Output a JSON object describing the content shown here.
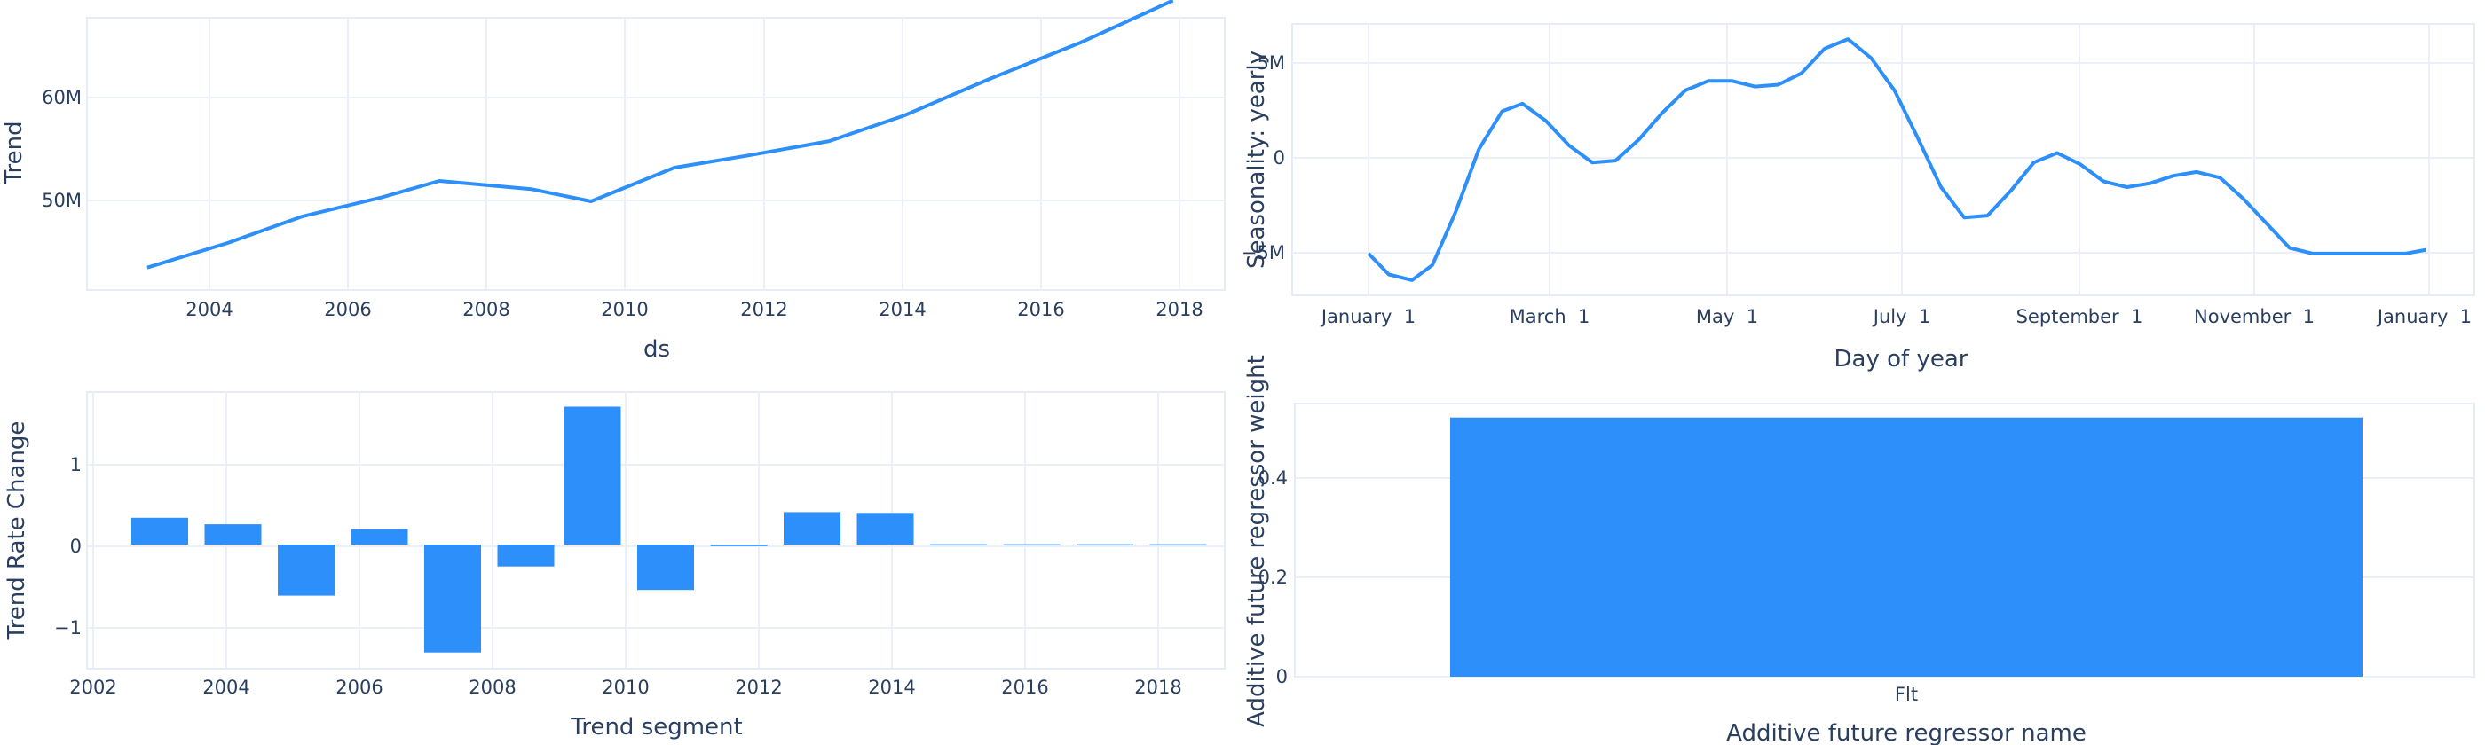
{
  "colors": {
    "trace": "#2d8ffa",
    "grid": "#ebf0f8",
    "text": "#2a3f5f"
  },
  "chart_data": [
    {
      "type": "line",
      "xlabel": "ds",
      "ylabel": "Trend",
      "x_tick_labels": [
        "2004",
        "2006",
        "2008",
        "2010",
        "2012",
        "2014",
        "2016",
        "2018"
      ],
      "y_tick_labels": [
        "50M",
        "60M"
      ],
      "xlim": [
        "2002-02-15",
        "2018-09-01"
      ],
      "ylim": [
        42.8,
        69.5
      ],
      "x": [
        "2003-01-01",
        "2004-03-01",
        "2005-04-01",
        "2006-06-01",
        "2007-04-01",
        "2008-08-01",
        "2009-06-15",
        "2010-09-01",
        "2011-10-01",
        "2012-12-01",
        "2014-01-01",
        "2015-04-01",
        "2016-08-01",
        "2017-11-30"
      ],
      "values": [
        45.0,
        47.4,
        50.0,
        51.9,
        53.5,
        52.7,
        51.5,
        54.8,
        56.0,
        57.4,
        59.9,
        63.5,
        67.1,
        71.2
      ]
    },
    {
      "type": "line",
      "xlabel": "Day of year",
      "ylabel": "Seasonality: yearly",
      "x_tick_labels": [
        "January  1",
        "March  1",
        "May  1",
        "July  1",
        "September  1",
        "November  1",
        "January  1"
      ],
      "y_tick_labels": [
        "−5M",
        "0",
        "5M"
      ],
      "ylim": [
        -7.4,
        6.9
      ],
      "x": [
        1,
        8,
        16,
        23,
        31,
        39,
        47,
        54,
        62,
        70,
        78,
        86,
        94,
        102,
        110,
        118,
        126,
        134,
        142,
        150,
        158,
        166,
        174,
        182,
        190,
        198,
        206,
        214,
        222,
        230,
        238,
        246,
        254,
        262,
        270,
        278,
        286,
        294,
        302,
        310,
        318,
        326,
        334,
        342,
        350,
        358,
        365
      ],
      "values": [
        -5.2,
        -6.3,
        -6.6,
        -5.8,
        -3.0,
        0.3,
        2.3,
        2.7,
        1.8,
        0.5,
        -0.4,
        -0.3,
        0.8,
        2.2,
        3.4,
        3.9,
        3.9,
        3.6,
        3.7,
        4.3,
        5.6,
        6.1,
        5.1,
        3.4,
        0.9,
        -1.7,
        -3.3,
        -3.2,
        -1.9,
        -0.4,
        0.1,
        -0.5,
        -1.4,
        -1.7,
        -1.5,
        -1.1,
        -0.9,
        -1.2,
        -2.3,
        -3.6,
        -4.9,
        -5.2,
        -5.2,
        -5.2,
        -5.2,
        -5.2,
        -5.0
      ]
    },
    {
      "type": "bar",
      "xlabel": "Trend segment",
      "ylabel": "Trend Rate Change",
      "x_tick_labels": [
        "2002",
        "2004",
        "2006",
        "2008",
        "2010",
        "2012",
        "2014",
        "2016",
        "2018"
      ],
      "y_tick_labels": [
        "−1",
        "0",
        "1"
      ],
      "ylim": [
        -1.53,
        1.88
      ],
      "x": [
        2003.0,
        2004.1,
        2005.2,
        2006.3,
        2007.4,
        2008.5,
        2009.5,
        2010.6,
        2011.7,
        2012.8,
        2013.9,
        2015.0,
        2016.1,
        2017.2,
        2018.3
      ],
      "values": [
        0.33,
        0.25,
        -0.63,
        0.19,
        -1.33,
        -0.27,
        1.7,
        -0.56,
        -0.02,
        0.4,
        0.39,
        0.005,
        0.005,
        0.005,
        0.005
      ]
    },
    {
      "type": "bar",
      "xlabel": "Additive future regressor name",
      "ylabel": "Additive future regressor weight",
      "categories": [
        "Flt"
      ],
      "values": [
        0.522
      ],
      "y_tick_labels": [
        "0",
        "0.2",
        "0.4"
      ],
      "ylim": [
        0,
        0.55
      ]
    }
  ]
}
